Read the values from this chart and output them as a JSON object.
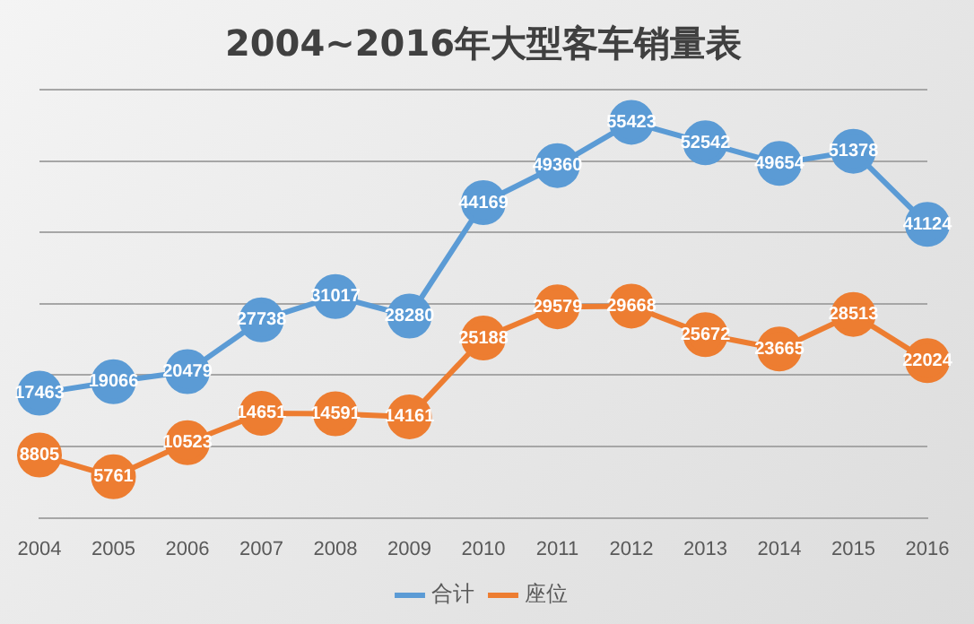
{
  "chart_data": {
    "type": "line",
    "title": "2004~2016年大型客车销量表",
    "categories": [
      "2004",
      "2005",
      "2006",
      "2007",
      "2008",
      "2009",
      "2010",
      "2011",
      "2012",
      "2013",
      "2014",
      "2015",
      "2016"
    ],
    "series": [
      {
        "name": "合计",
        "color": "#5b9bd5",
        "values": [
          17463,
          19066,
          20479,
          27738,
          31017,
          28280,
          44169,
          49360,
          55423,
          52542,
          49654,
          51378,
          41124
        ]
      },
      {
        "name": "座位",
        "color": "#ed7d31",
        "values": [
          8805,
          5761,
          10523,
          14651,
          14591,
          14161,
          25188,
          29579,
          29668,
          25672,
          23665,
          28513,
          22024
        ]
      }
    ],
    "ylim": [
      0,
      60000
    ],
    "yticks": [
      0,
      10000,
      20000,
      30000,
      40000,
      50000,
      60000
    ],
    "tick_labels": "x",
    "grid": "y",
    "legend": "bottom",
    "marker": "circle",
    "line_style": "solid",
    "data_labels": true
  }
}
